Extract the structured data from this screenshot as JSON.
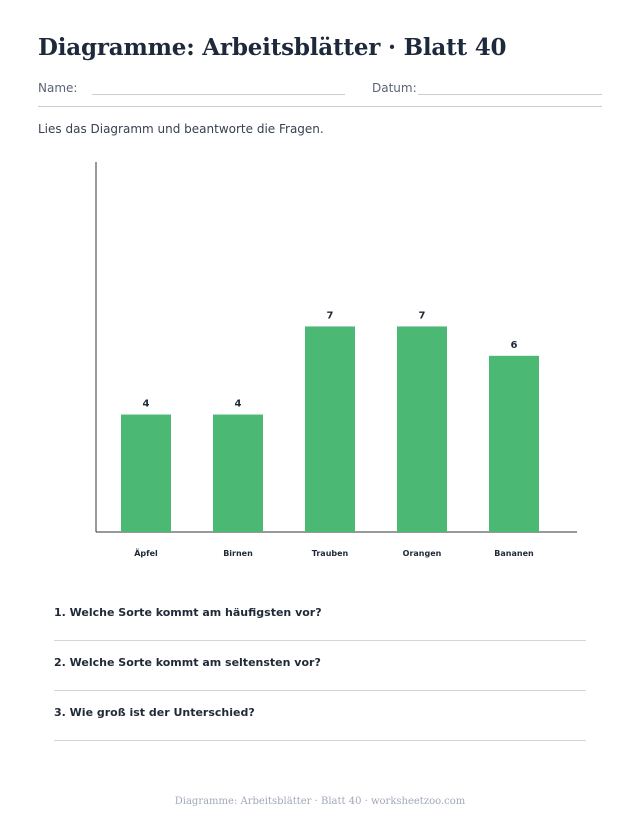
{
  "header": {
    "title": "Diagramme: Arbeitsblätter · Blatt 40",
    "name_label": "Name:",
    "date_label": "Datum:"
  },
  "instruction": "Lies das Diagramm und beantworte die Fragen.",
  "colors": {
    "bar": "#4bb874",
    "axis": "#333333"
  },
  "chart_data": {
    "type": "bar",
    "categories": [
      "Äpfel",
      "Birnen",
      "Trauben",
      "Orangen",
      "Bananen"
    ],
    "values": [
      4,
      4,
      7,
      7,
      6
    ],
    "title": "",
    "xlabel": "",
    "ylabel": "",
    "ylim": [
      0,
      12.6
    ],
    "grid": false,
    "data_labels": true
  },
  "questions": [
    "1. Welche Sorte kommt am häufigsten vor?",
    "2. Welche Sorte kommt am seltensten vor?",
    "3. Wie groß ist der Unterschied?"
  ],
  "footer": "Diagramme: Arbeitsblätter · Blatt 40 · worksheetzoo.com"
}
